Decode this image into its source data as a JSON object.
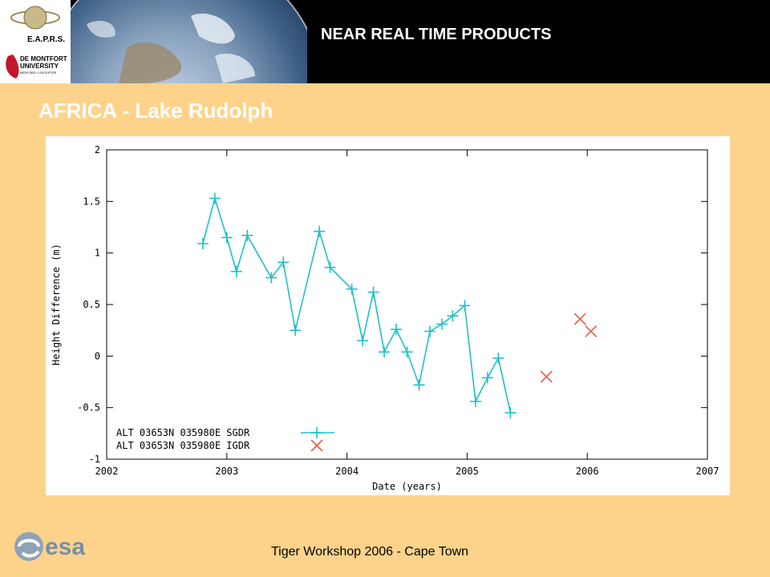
{
  "header": {
    "title": "NEAR REAL TIME PRODUCTS",
    "eaprs_logo_text": "E.A.P.R.S.",
    "university_logo_text": [
      "DE MONTFORT",
      "UNIVERSITY",
      "BEDFORD • LEICESTER"
    ]
  },
  "slide": {
    "title": "AFRICA - Lake Rudolph"
  },
  "footer": {
    "text": "Tiger Workshop 2006 - Cape Town",
    "esa_logo_text": "esa"
  },
  "colors": {
    "background": "#fdd38c",
    "sgdr": "#20c0c8",
    "igdr": "#e85a4a"
  },
  "chart_data": {
    "type": "line",
    "title": "",
    "xlabel": "Date (years)",
    "ylabel": "Height Difference (m)",
    "xlim": [
      2002,
      2007
    ],
    "ylim": [
      -1,
      2
    ],
    "x_ticks": [
      "2002",
      "2003",
      "2004",
      "2005",
      "2006",
      "2007"
    ],
    "y_ticks": [
      "-1",
      "-0.5",
      "0",
      "0.5",
      "1",
      "1.5",
      "2"
    ],
    "x_tick_values": [
      2002,
      2003,
      2004,
      2005,
      2006,
      2007
    ],
    "y_tick_values": [
      -1,
      -0.5,
      0,
      0.5,
      1,
      1.5,
      2
    ],
    "grid": false,
    "legend_position": "bottom-left",
    "series": [
      {
        "name": "ALT 03653N 035980E SGDR",
        "marker": "plus",
        "line": true,
        "color": "#20c0c8",
        "x": [
          2002.8,
          2002.9,
          2003.0,
          2003.08,
          2003.17,
          2003.37,
          2003.47,
          2003.57,
          2003.77,
          2003.86,
          2004.04,
          2004.13,
          2004.22,
          2004.31,
          2004.41,
          2004.5,
          2004.6,
          2004.69,
          2004.79,
          2004.88,
          2004.98,
          2005.07,
          2005.17,
          2005.26,
          2005.36
        ],
        "y": [
          1.09,
          1.53,
          1.15,
          0.82,
          1.17,
          0.76,
          0.91,
          0.25,
          1.21,
          0.86,
          0.65,
          0.15,
          0.62,
          0.04,
          0.26,
          0.04,
          -0.28,
          0.24,
          0.31,
          0.39,
          0.49,
          -0.44,
          -0.21,
          -0.02,
          -0.55
        ]
      },
      {
        "name": "ALT 03653N 035980E IGDR",
        "marker": "x",
        "line": false,
        "color": "#e85a4a",
        "x": [
          2005.66,
          2005.94,
          2006.03
        ],
        "y": [
          -0.2,
          0.36,
          0.24
        ]
      }
    ]
  }
}
